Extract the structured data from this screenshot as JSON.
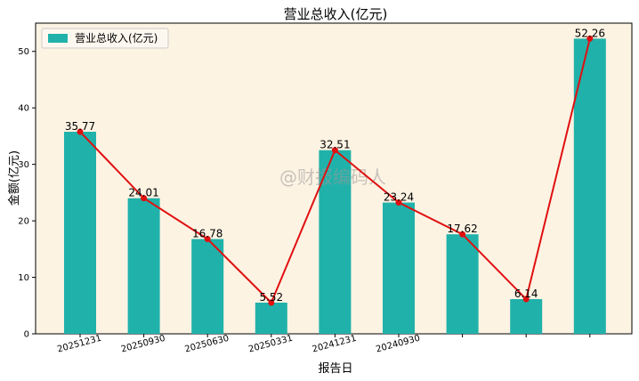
{
  "chart_data": {
    "type": "bar",
    "title": "营业总收入(亿元)",
    "xlabel": "报告日",
    "ylabel": "金额(亿元)",
    "categories": [
      "20251231",
      "20250930",
      "20250630",
      "20250331",
      "20241231",
      "20240930",
      "",
      "",
      ""
    ],
    "values": [
      35.77,
      24.01,
      16.78,
      5.52,
      32.51,
      23.24,
      17.62,
      6.14,
      52.26
    ],
    "data_labels": [
      "35.77",
      "24.01",
      "16.78",
      "5.52",
      "32.51",
      "23.24",
      "17.62",
      "6.14",
      "52.26"
    ],
    "series": [
      {
        "name": "营业总收入(亿元)",
        "type": "bar",
        "color": "#20b2aa"
      },
      {
        "name": "",
        "type": "line",
        "color": "#e01010"
      }
    ],
    "ylim": [
      0,
      55
    ],
    "yticks": [
      0,
      10,
      20,
      30,
      40,
      50
    ],
    "grid": false,
    "legend_position": "top-left",
    "background_color": "#fdf3e3",
    "watermark": "@财报编码人"
  }
}
